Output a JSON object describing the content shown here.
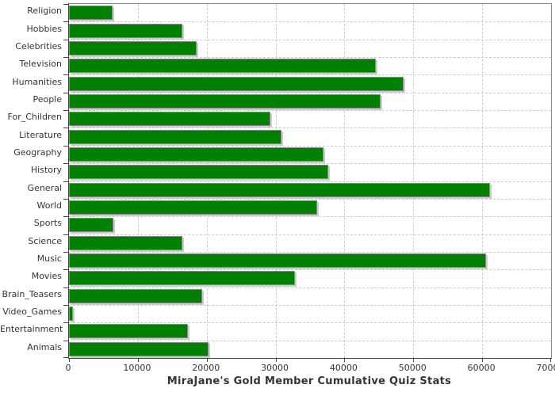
{
  "chart_data": {
    "type": "bar",
    "orientation": "horizontal",
    "title": "MiraJane's Gold Member Cumulative Quiz Stats",
    "categories": [
      "Religion",
      "Hobbies",
      "Celebrities",
      "Television",
      "Humanities",
      "People",
      "For_Children",
      "Literature",
      "Geography",
      "History",
      "General",
      "World",
      "Sports",
      "Science",
      "Music",
      "Movies",
      "Brain_Teasers",
      "Video_Games",
      "Entertainment",
      "Animals"
    ],
    "values": [
      6300,
      16500,
      18500,
      44600,
      48600,
      45200,
      29200,
      30800,
      36900,
      37600,
      61100,
      36000,
      6500,
      16500,
      60600,
      32800,
      19300,
      600,
      17300,
      20300
    ],
    "xlabel": "",
    "ylabel": "",
    "xlim": [
      0,
      70000
    ],
    "x_ticks": [
      0,
      10000,
      20000,
      30000,
      40000,
      50000,
      60000,
      70000
    ],
    "grid": "dashed",
    "legend": "none",
    "colors": {
      "bar": "#008000",
      "bar_outline": "#888888",
      "bar_shadow": "#cccccc",
      "gridline": "#cccccc",
      "axis": "#555555",
      "text": "#333333",
      "background": "#ffffff"
    }
  }
}
